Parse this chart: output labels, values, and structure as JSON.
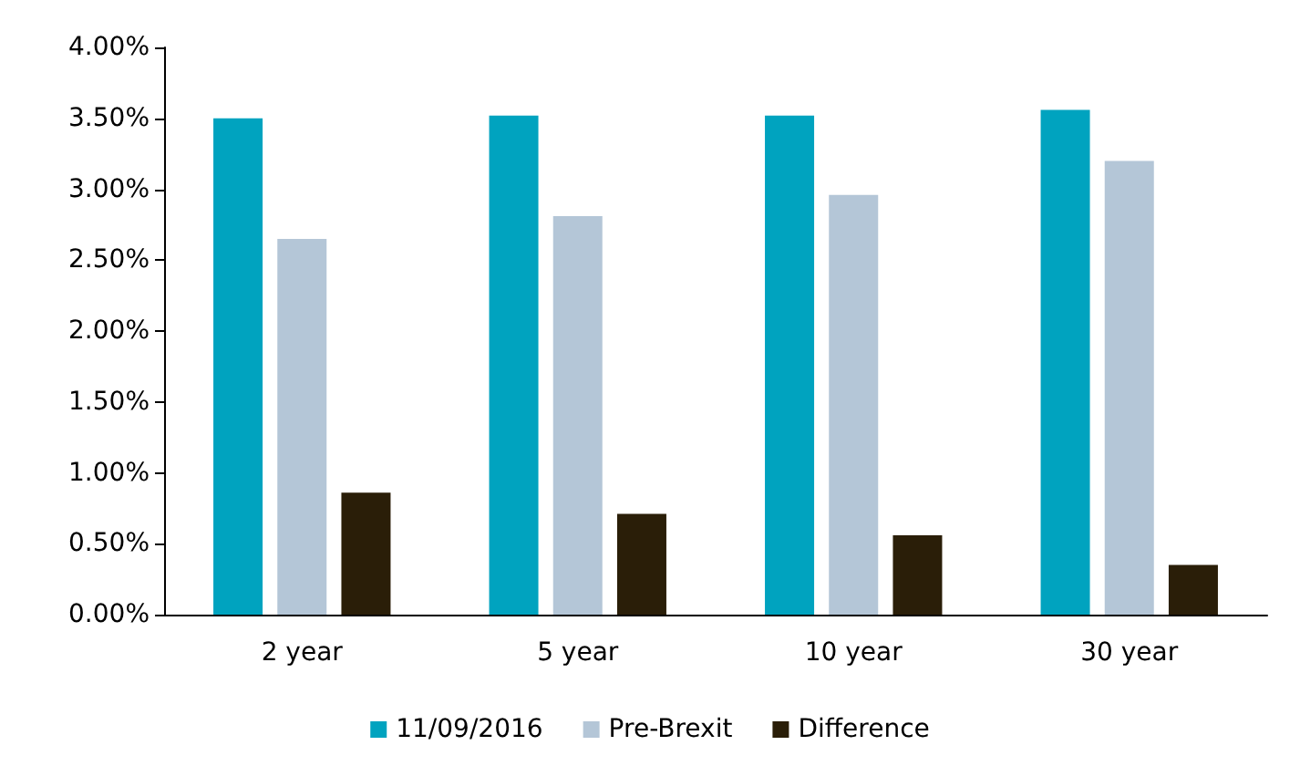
{
  "chart_data": {
    "type": "bar",
    "categories": [
      "2 year",
      "5 year",
      "10 year",
      "30 year"
    ],
    "series": [
      {
        "name": "11/09/2016",
        "color": "#00a3bf",
        "values": [
          3.5,
          3.52,
          3.52,
          3.56
        ]
      },
      {
        "name": "Pre-Brexit",
        "color": "#b4c6d7",
        "values": [
          2.65,
          2.81,
          2.96,
          3.2
        ]
      },
      {
        "name": "Difference",
        "color": "#2a1e08",
        "values": [
          0.86,
          0.71,
          0.56,
          0.35
        ]
      }
    ],
    "ylim": [
      0,
      4
    ],
    "yticks": [
      {
        "value": 0,
        "label": "0.00%"
      },
      {
        "value": 0.5,
        "label": "0.50%"
      },
      {
        "value": 1,
        "label": "1.00%"
      },
      {
        "value": 1.5,
        "label": "1.50%"
      },
      {
        "value": 2,
        "label": "2.00%"
      },
      {
        "value": 2.5,
        "label": "2.50%"
      },
      {
        "value": 3,
        "label": "3.00%"
      },
      {
        "value": 3.5,
        "label": "3.50%"
      },
      {
        "value": 4,
        "label": "4.00%"
      }
    ],
    "grid": false,
    "legend": "bottom"
  }
}
